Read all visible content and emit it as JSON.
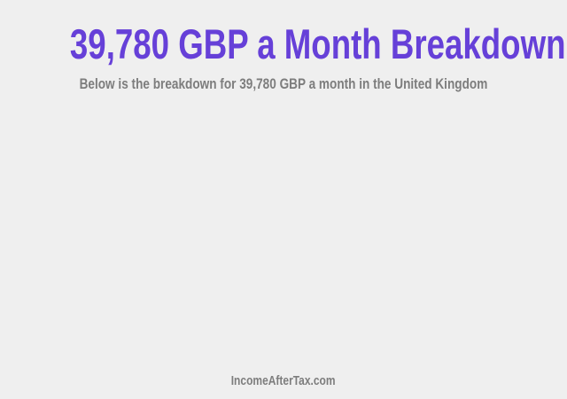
{
  "header": {
    "title": "39,780 GBP a Month Breakdown",
    "subtitle": "Below is the breakdown for 39,780 GBP a month in the United Kingdom"
  },
  "footer": {
    "site": "IncomeAfterTax.com"
  },
  "colors": {
    "accent": "#6640d8",
    "text_muted": "#7d7d7d",
    "background": "#efefef"
  }
}
